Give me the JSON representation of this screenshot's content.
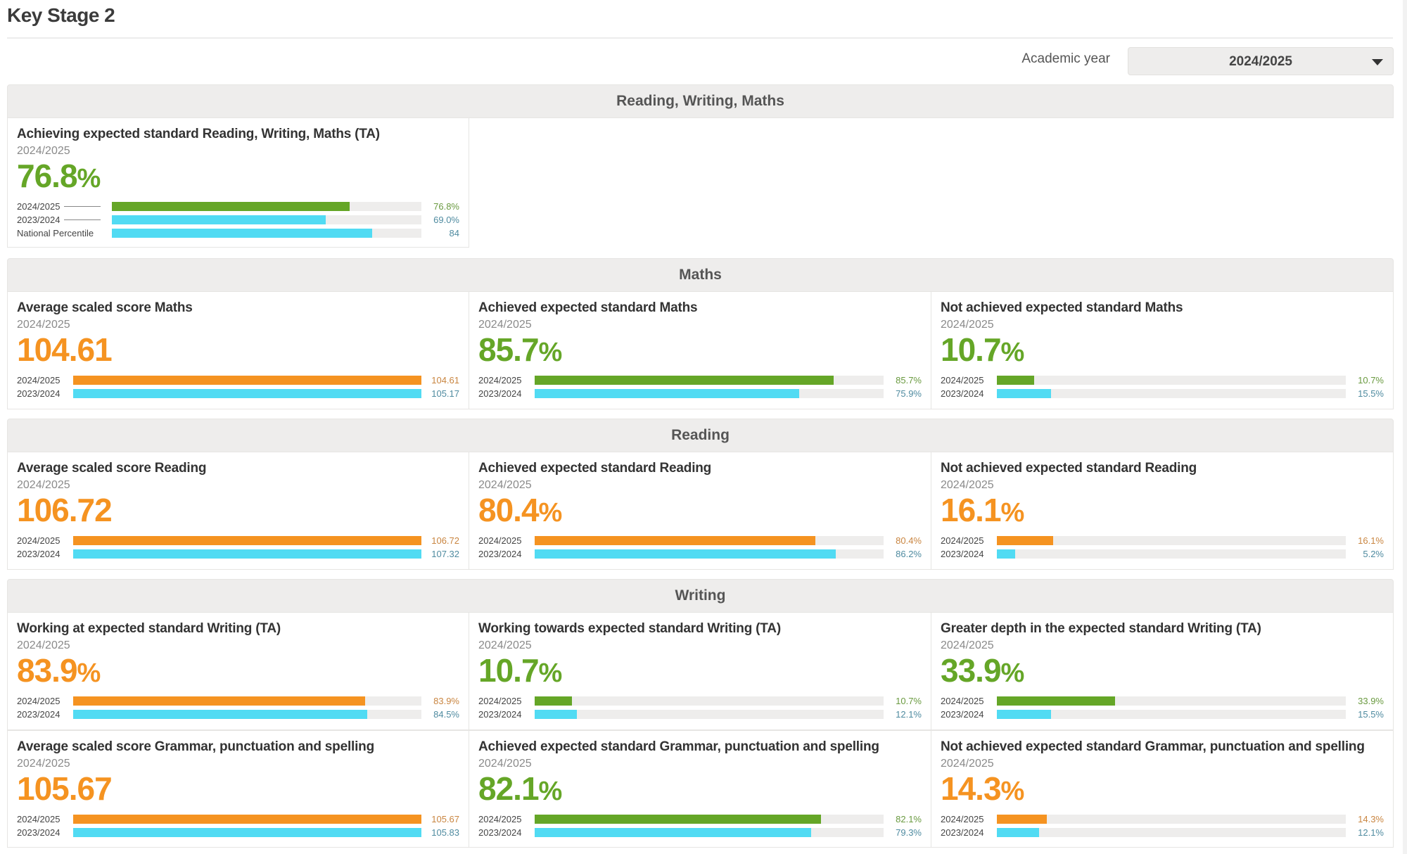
{
  "page": {
    "title": "Key Stage 2",
    "academic_year_label": "Academic year",
    "academic_year_selected": "2024/2025"
  },
  "colors": {
    "green": "#65a627",
    "orange": "#f59321",
    "blue": "#51dbf3",
    "track": "#eeedec",
    "header_bg": "#eeedec"
  },
  "sections": [
    {
      "title": "Reading, Writing, Maths",
      "rows": [
        [
          {
            "title": "Achieving expected standard Reading, Writing, Maths (TA)",
            "year": "2024/2025",
            "value": "76.8",
            "unit": "%",
            "color": "green",
            "show_ticks": true,
            "bars": [
              {
                "label": "2024/2025",
                "display": "76.8%",
                "fraction": 0.768,
                "color": "green"
              },
              {
                "label": "2023/2024",
                "display": "69.0%",
                "fraction": 0.69,
                "color": "blue"
              },
              {
                "label": "National Percentile",
                "display": "84",
                "fraction": 0.84,
                "color": "blue"
              }
            ]
          }
        ]
      ]
    },
    {
      "title": "Maths",
      "rows": [
        [
          {
            "title": "Average scaled score Maths",
            "year": "2024/2025",
            "value": "104.61",
            "unit": "",
            "color": "orange",
            "bars": [
              {
                "label": "2024/2025",
                "display": "104.61",
                "fraction": 1.0,
                "color": "orange"
              },
              {
                "label": "2023/2024",
                "display": "105.17",
                "fraction": 1.0,
                "color": "blue"
              }
            ]
          },
          {
            "title": "Achieved expected standard Maths",
            "year": "2024/2025",
            "value": "85.7",
            "unit": "%",
            "color": "green",
            "bars": [
              {
                "label": "2024/2025",
                "display": "85.7%",
                "fraction": 0.857,
                "color": "green"
              },
              {
                "label": "2023/2024",
                "display": "75.9%",
                "fraction": 0.759,
                "color": "blue"
              }
            ]
          },
          {
            "title": "Not achieved expected standard Maths",
            "year": "2024/2025",
            "value": "10.7",
            "unit": "%",
            "color": "green",
            "bars": [
              {
                "label": "2024/2025",
                "display": "10.7%",
                "fraction": 0.107,
                "color": "green"
              },
              {
                "label": "2023/2024",
                "display": "15.5%",
                "fraction": 0.155,
                "color": "blue"
              }
            ]
          }
        ]
      ]
    },
    {
      "title": "Reading",
      "rows": [
        [
          {
            "title": "Average scaled score Reading",
            "year": "2024/2025",
            "value": "106.72",
            "unit": "",
            "color": "orange",
            "bars": [
              {
                "label": "2024/2025",
                "display": "106.72",
                "fraction": 1.0,
                "color": "orange"
              },
              {
                "label": "2023/2024",
                "display": "107.32",
                "fraction": 1.0,
                "color": "blue"
              }
            ]
          },
          {
            "title": "Achieved expected standard Reading",
            "year": "2024/2025",
            "value": "80.4",
            "unit": "%",
            "color": "orange",
            "bars": [
              {
                "label": "2024/2025",
                "display": "80.4%",
                "fraction": 0.804,
                "color": "orange"
              },
              {
                "label": "2023/2024",
                "display": "86.2%",
                "fraction": 0.862,
                "color": "blue"
              }
            ]
          },
          {
            "title": "Not achieved expected standard Reading",
            "year": "2024/2025",
            "value": "16.1",
            "unit": "%",
            "color": "orange",
            "bars": [
              {
                "label": "2024/2025",
                "display": "16.1%",
                "fraction": 0.161,
                "color": "orange"
              },
              {
                "label": "2023/2024",
                "display": "5.2%",
                "fraction": 0.052,
                "color": "blue"
              }
            ]
          }
        ]
      ]
    },
    {
      "title": "Writing",
      "rows": [
        [
          {
            "title": "Working at expected standard Writing (TA)",
            "year": "2024/2025",
            "value": "83.9",
            "unit": "%",
            "color": "orange",
            "bars": [
              {
                "label": "2024/2025",
                "display": "83.9%",
                "fraction": 0.839,
                "color": "orange"
              },
              {
                "label": "2023/2024",
                "display": "84.5%",
                "fraction": 0.845,
                "color": "blue"
              }
            ]
          },
          {
            "title": "Working towards expected standard Writing (TA)",
            "year": "2024/2025",
            "value": "10.7",
            "unit": "%",
            "color": "green",
            "bars": [
              {
                "label": "2024/2025",
                "display": "10.7%",
                "fraction": 0.107,
                "color": "green"
              },
              {
                "label": "2023/2024",
                "display": "12.1%",
                "fraction": 0.121,
                "color": "blue"
              }
            ]
          },
          {
            "title": "Greater depth in the expected standard Writing (TA)",
            "year": "2024/2025",
            "value": "33.9",
            "unit": "%",
            "color": "green",
            "bars": [
              {
                "label": "2024/2025",
                "display": "33.9%",
                "fraction": 0.339,
                "color": "green"
              },
              {
                "label": "2023/2024",
                "display": "15.5%",
                "fraction": 0.155,
                "color": "blue"
              }
            ]
          }
        ],
        [
          {
            "title": "Average scaled score Grammar, punctuation and spelling",
            "year": "2024/2025",
            "value": "105.67",
            "unit": "",
            "color": "orange",
            "bars": [
              {
                "label": "2024/2025",
                "display": "105.67",
                "fraction": 1.0,
                "color": "orange"
              },
              {
                "label": "2023/2024",
                "display": "105.83",
                "fraction": 1.0,
                "color": "blue"
              }
            ]
          },
          {
            "title": "Achieved expected standard Grammar, punctuation and spelling",
            "year": "2024/2025",
            "value": "82.1",
            "unit": "%",
            "color": "green",
            "bars": [
              {
                "label": "2024/2025",
                "display": "82.1%",
                "fraction": 0.821,
                "color": "green"
              },
              {
                "label": "2023/2024",
                "display": "79.3%",
                "fraction": 0.793,
                "color": "blue"
              }
            ]
          },
          {
            "title": "Not achieved expected standard Grammar, punctuation and spelling",
            "year": "2024/2025",
            "value": "14.3",
            "unit": "%",
            "color": "orange",
            "bars": [
              {
                "label": "2024/2025",
                "display": "14.3%",
                "fraction": 0.143,
                "color": "orange"
              },
              {
                "label": "2023/2024",
                "display": "12.1%",
                "fraction": 0.121,
                "color": "blue"
              }
            ]
          }
        ]
      ]
    }
  ]
}
